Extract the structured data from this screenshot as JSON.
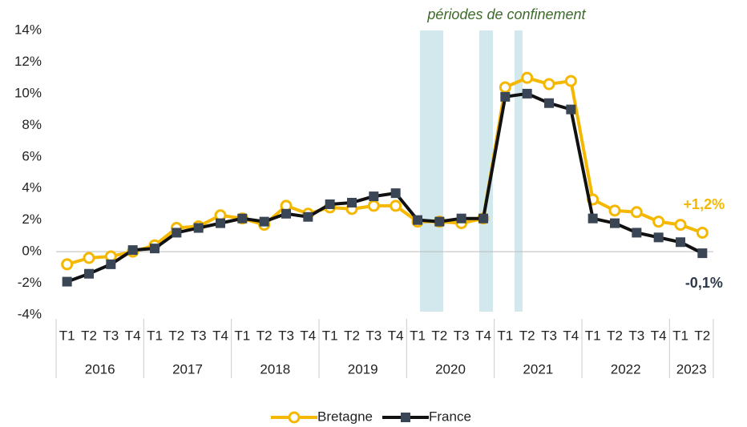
{
  "chart_data": {
    "type": "line",
    "annotation": "périodes de confinement",
    "groups": [
      {
        "label": "2016",
        "categories": [
          "T1",
          "T2",
          "T3",
          "T4"
        ]
      },
      {
        "label": "2017",
        "categories": [
          "T1",
          "T2",
          "T3",
          "T4"
        ]
      },
      {
        "label": "2018",
        "categories": [
          "T1",
          "T2",
          "T3",
          "T4"
        ]
      },
      {
        "label": "2019",
        "categories": [
          "T1",
          "T2",
          "T3",
          "T4"
        ]
      },
      {
        "label": "2020",
        "categories": [
          "T1",
          "T2",
          "T3",
          "T4"
        ]
      },
      {
        "label": "2021",
        "categories": [
          "T1",
          "T2",
          "T3",
          "T4"
        ]
      },
      {
        "label": "2022",
        "categories": [
          "T1",
          "T2",
          "T3",
          "T4"
        ]
      },
      {
        "label": "2023",
        "categories": [
          "T1",
          "T2"
        ]
      }
    ],
    "series": [
      {
        "name": "Bretagne",
        "color": "#f5b800",
        "marker": "circle",
        "values": [
          -0.8,
          -0.4,
          -0.3,
          0.0,
          0.4,
          1.5,
          1.6,
          2.3,
          2.1,
          1.7,
          2.9,
          2.4,
          2.8,
          2.7,
          2.9,
          2.9,
          1.9,
          1.9,
          1.8,
          2.1,
          10.4,
          11.0,
          10.6,
          10.8,
          3.3,
          2.6,
          2.5,
          1.9,
          1.7,
          1.2
        ],
        "value_labels": [
          null,
          null,
          null,
          null,
          null,
          null,
          null,
          null,
          null,
          null,
          null,
          null,
          null,
          null,
          null,
          null,
          null,
          null,
          null,
          null,
          null,
          null,
          null,
          null,
          null,
          null,
          null,
          null,
          null,
          "+1,2%"
        ]
      },
      {
        "name": "France",
        "color": "#111111",
        "marker_color": "#3a4555",
        "marker": "square",
        "values": [
          -1.9,
          -1.4,
          -0.8,
          0.1,
          0.2,
          1.2,
          1.5,
          1.8,
          2.1,
          1.9,
          2.4,
          2.2,
          3.0,
          3.1,
          3.5,
          3.7,
          2.0,
          1.9,
          2.1,
          2.1,
          9.8,
          10.0,
          9.4,
          9.0,
          2.1,
          1.8,
          1.2,
          0.9,
          0.6,
          -0.1
        ],
        "value_labels": [
          null,
          null,
          null,
          null,
          null,
          null,
          null,
          null,
          null,
          null,
          null,
          null,
          null,
          null,
          null,
          null,
          null,
          null,
          null,
          null,
          null,
          null,
          null,
          null,
          null,
          null,
          null,
          null,
          null,
          "-0,1%"
        ]
      }
    ],
    "ylim": [
      -4,
      14
    ],
    "yticks": [
      {
        "value": -4,
        "label": "-4%"
      },
      {
        "value": -2,
        "label": "-2%"
      },
      {
        "value": 0,
        "label": "0%"
      },
      {
        "value": 2,
        "label": "2%"
      },
      {
        "value": 4,
        "label": "4%"
      },
      {
        "value": 6,
        "label": "6%"
      },
      {
        "value": 8,
        "label": "8%"
      },
      {
        "value": 10,
        "label": "10%"
      },
      {
        "value": 12,
        "label": "12%"
      },
      {
        "value": 14,
        "label": "14%"
      }
    ],
    "legend": "bottom"
  }
}
